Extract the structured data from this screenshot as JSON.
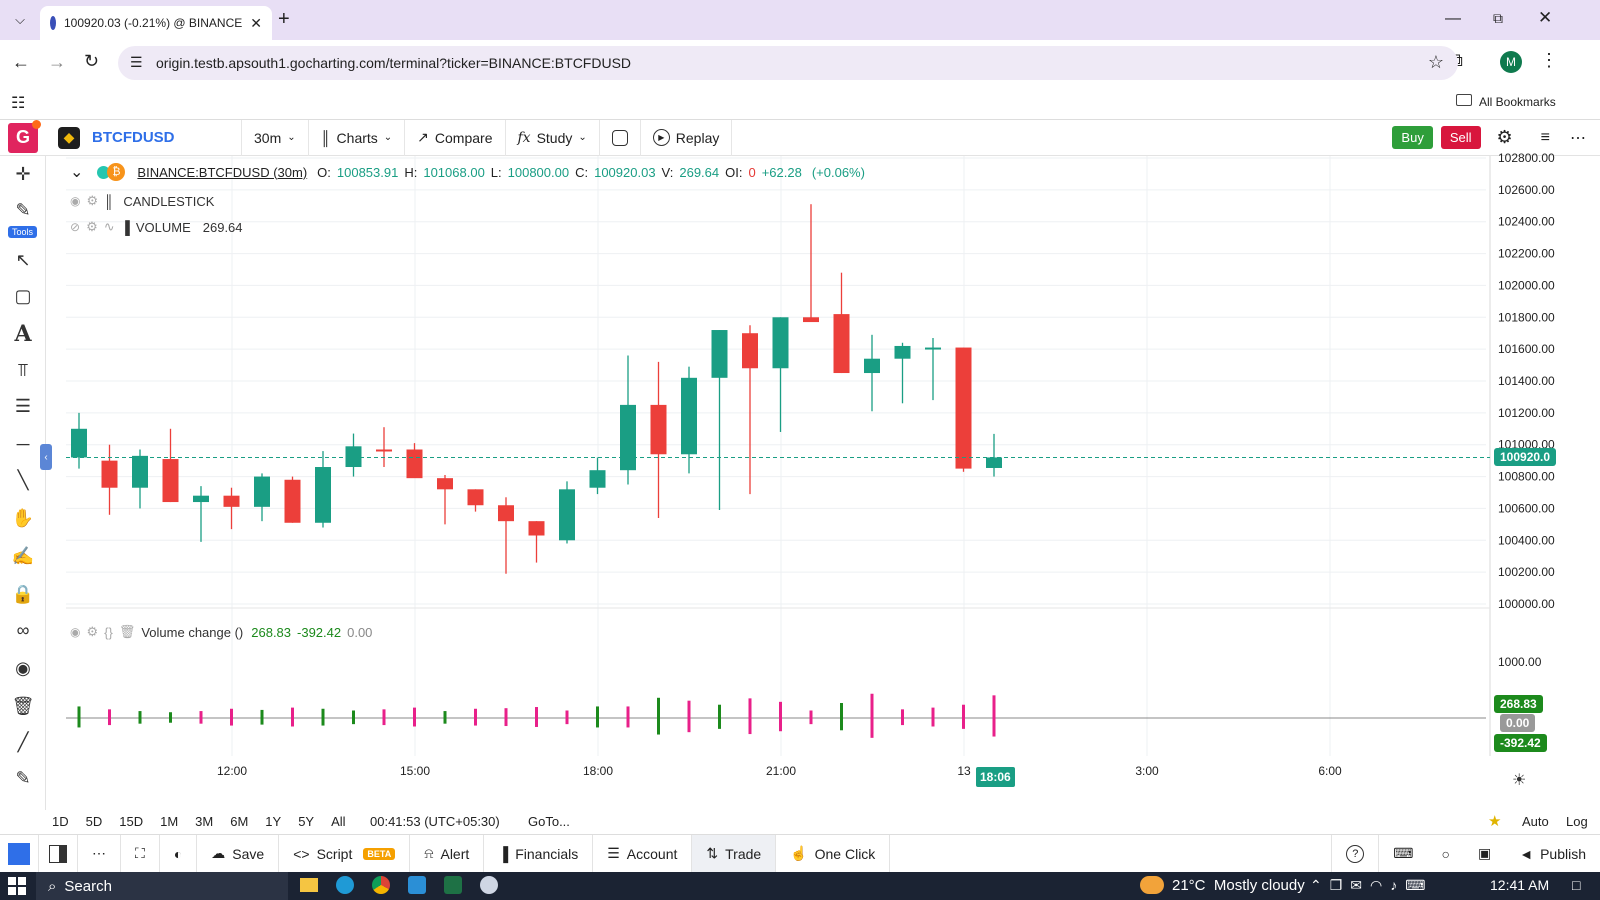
{
  "browser": {
    "tab_title": "100920.03 (-0.21%) @ BINANCE",
    "url": "origin.testb.apsouth1.gocharting.com/terminal?ticker=BINANCE:BTCFDUSD",
    "bookmarks_label": "All Bookmarks",
    "profile_initial": "M"
  },
  "app": {
    "logo_letter": "G",
    "symbol": "BTCFDUSD",
    "interval": "30m",
    "charts_label": "Charts",
    "compare_label": "Compare",
    "study_label": "Study",
    "replay_label": "Replay",
    "buy_label": "Buy",
    "sell_label": "Sell",
    "tools_badge": "Tools"
  },
  "legend": {
    "title": "BINANCE:BTCFDUSD (30m)",
    "o_label": "O:",
    "o": "100853.91",
    "h_label": "H:",
    "h": "101068.00",
    "l_label": "L:",
    "l": "100800.00",
    "c_label": "C:",
    "c": "100920.03",
    "v_label": "V:",
    "v": "269.64",
    "oi_label": "OI:",
    "oi": "0",
    "chg": "+62.28",
    "chg_pct": "(+0.06%)",
    "candlestick_label": "CANDLESTICK",
    "volume_label": "VOLUME",
    "volume_value": "269.64"
  },
  "indicator": {
    "name": "Volume change ()",
    "v1": "268.83",
    "v2": "-392.42",
    "v3": "0.00",
    "axis_label": "1000.00",
    "tag_pos": "268.83",
    "tag_zero": "0.00",
    "tag_neg": "-392.42"
  },
  "price_axis": [
    "102800.00",
    "102600.00",
    "102400.00",
    "102200.00",
    "102000.00",
    "101800.00",
    "101600.00",
    "101400.00",
    "101200.00",
    "101000.00",
    "100800.00",
    "100600.00",
    "100400.00",
    "100200.00",
    "100000.00"
  ],
  "last_price_tag": "100920.0",
  "time_axis": [
    "12:00",
    "15:00",
    "18:00",
    "21:00",
    "13",
    "3:00",
    "6:00"
  ],
  "time_cursor": "18:06",
  "ranges": [
    "1D",
    "5D",
    "15D",
    "1M",
    "3M",
    "6M",
    "1Y",
    "5Y",
    "All"
  ],
  "clock": "00:41:53 (UTC+05:30)",
  "goto_label": "GoTo...",
  "scale_auto": "Auto",
  "scale_log": "Log",
  "footer": {
    "save": "Save",
    "script": "Script",
    "beta": "BETA",
    "alert": "Alert",
    "financials": "Financials",
    "account": "Account",
    "trade": "Trade",
    "one_click": "One Click",
    "publish": "Publish"
  },
  "taskbar": {
    "search": "Search",
    "weather": "21°C  Mostly cloudy",
    "time": "12:41 AM"
  },
  "colors": {
    "up": "#1a9e84",
    "down": "#ec3f3a",
    "vol_pos": "#1c8a1c",
    "vol_neg": "#e8208a",
    "accent": "#2f6fe8"
  },
  "chart_data": {
    "type": "candlestick",
    "interval": "30m",
    "y_range": [
      100000,
      102800
    ],
    "last_price": 100920.03,
    "candles": [
      {
        "o": 100920,
        "h": 101200,
        "l": 100850,
        "c": 101100
      },
      {
        "o": 100900,
        "h": 101000,
        "l": 100560,
        "c": 100730
      },
      {
        "o": 100730,
        "h": 100970,
        "l": 100600,
        "c": 100930
      },
      {
        "o": 100910,
        "h": 101100,
        "l": 100640,
        "c": 100640
      },
      {
        "o": 100640,
        "h": 100740,
        "l": 100390,
        "c": 100680
      },
      {
        "o": 100680,
        "h": 100730,
        "l": 100470,
        "c": 100610
      },
      {
        "o": 100610,
        "h": 100820,
        "l": 100520,
        "c": 100800
      },
      {
        "o": 100780,
        "h": 100800,
        "l": 100510,
        "c": 100510
      },
      {
        "o": 100510,
        "h": 100960,
        "l": 100480,
        "c": 100860
      },
      {
        "o": 100860,
        "h": 101070,
        "l": 100800,
        "c": 100990
      },
      {
        "o": 100970,
        "h": 101110,
        "l": 100860,
        "c": 100960
      },
      {
        "o": 100970,
        "h": 101010,
        "l": 100800,
        "c": 100790
      },
      {
        "o": 100790,
        "h": 100810,
        "l": 100500,
        "c": 100720
      },
      {
        "o": 100720,
        "h": 100720,
        "l": 100580,
        "c": 100620
      },
      {
        "o": 100620,
        "h": 100670,
        "l": 100190,
        "c": 100520
      },
      {
        "o": 100520,
        "h": 100520,
        "l": 100260,
        "c": 100430
      },
      {
        "o": 100400,
        "h": 100770,
        "l": 100380,
        "c": 100720
      },
      {
        "o": 100730,
        "h": 100920,
        "l": 100690,
        "c": 100840
      },
      {
        "o": 100840,
        "h": 101560,
        "l": 100750,
        "c": 101250
      },
      {
        "o": 101250,
        "h": 101520,
        "l": 100540,
        "c": 100940
      },
      {
        "o": 100940,
        "h": 101490,
        "l": 100820,
        "c": 101420
      },
      {
        "o": 101420,
        "h": 101720,
        "l": 100590,
        "c": 101720
      },
      {
        "o": 101700,
        "h": 101750,
        "l": 100690,
        "c": 101480
      },
      {
        "o": 101480,
        "h": 101800,
        "l": 101080,
        "c": 101800
      },
      {
        "o": 101800,
        "h": 102510,
        "l": 101780,
        "c": 101770
      },
      {
        "o": 101820,
        "h": 102080,
        "l": 101450,
        "c": 101450
      },
      {
        "o": 101450,
        "h": 101690,
        "l": 101210,
        "c": 101540
      },
      {
        "o": 101540,
        "h": 101640,
        "l": 101260,
        "c": 101620
      },
      {
        "o": 101610,
        "h": 101670,
        "l": 101280,
        "c": 101610
      },
      {
        "o": 101610,
        "h": 101610,
        "l": 100830,
        "c": 100850
      },
      {
        "o": 100853.91,
        "h": 101068,
        "l": 100800,
        "c": 100920.03
      }
    ],
    "volume_change": [
      200,
      -150,
      120,
      100,
      -120,
      -160,
      140,
      -180,
      160,
      130,
      -150,
      -180,
      120,
      -160,
      -170,
      -190,
      -130,
      200,
      -200,
      350,
      -300,
      230,
      -340,
      -280,
      -130,
      260,
      -420,
      -150,
      -180,
      -230,
      -392.42
    ]
  }
}
